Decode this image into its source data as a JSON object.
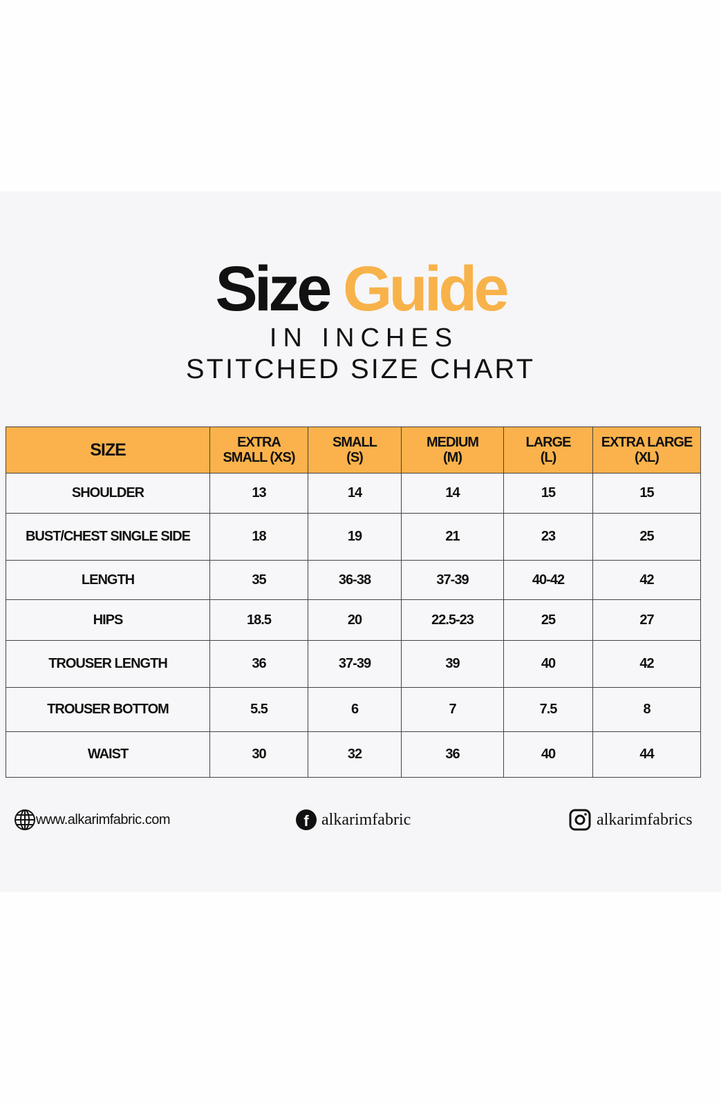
{
  "title": {
    "word1": "Size",
    "word2": "Guide",
    "accent_color": "#f8b24a"
  },
  "subtitle1": "IN INCHES",
  "subtitle2": "STITCHED SIZE CHART",
  "table": {
    "header_color": "#fbb24c",
    "headers": [
      [
        "SIZE",
        ""
      ],
      [
        "EXTRA",
        "SMALL (XS)"
      ],
      [
        "SMALL",
        "(S)"
      ],
      [
        "MEDIUM",
        "(M)"
      ],
      [
        "LARGE",
        "(L)"
      ],
      [
        "EXTRA LARGE",
        "(XL)"
      ]
    ],
    "rows": [
      [
        "SHOULDER",
        "13",
        "14",
        "14",
        "15",
        "15"
      ],
      [
        "BUST/CHEST SINGLE SIDE",
        "18",
        "19",
        "21",
        "23",
        "25"
      ],
      [
        "LENGTH",
        "35",
        "36-38",
        "37-39",
        "40-42",
        "42"
      ],
      [
        "HIPS",
        "18.5",
        "20",
        "22.5-23",
        "25",
        "27"
      ],
      [
        "TROUSER LENGTH",
        "36",
        "37-39",
        "39",
        "40",
        "42"
      ],
      [
        "TROUSER BOTTOM",
        "5.5",
        "6",
        "7",
        "7.5",
        "8"
      ],
      [
        "WAIST",
        "30",
        "32",
        "36",
        "40",
        "44"
      ]
    ]
  },
  "footer": {
    "website": {
      "icon": "globe-icon",
      "text": "www.alkarimfabric.com"
    },
    "facebook": {
      "icon": "facebook-icon",
      "text": "alkarimfabric"
    },
    "instagram": {
      "icon": "instagram-icon",
      "text": "alkarimfabrics"
    }
  }
}
